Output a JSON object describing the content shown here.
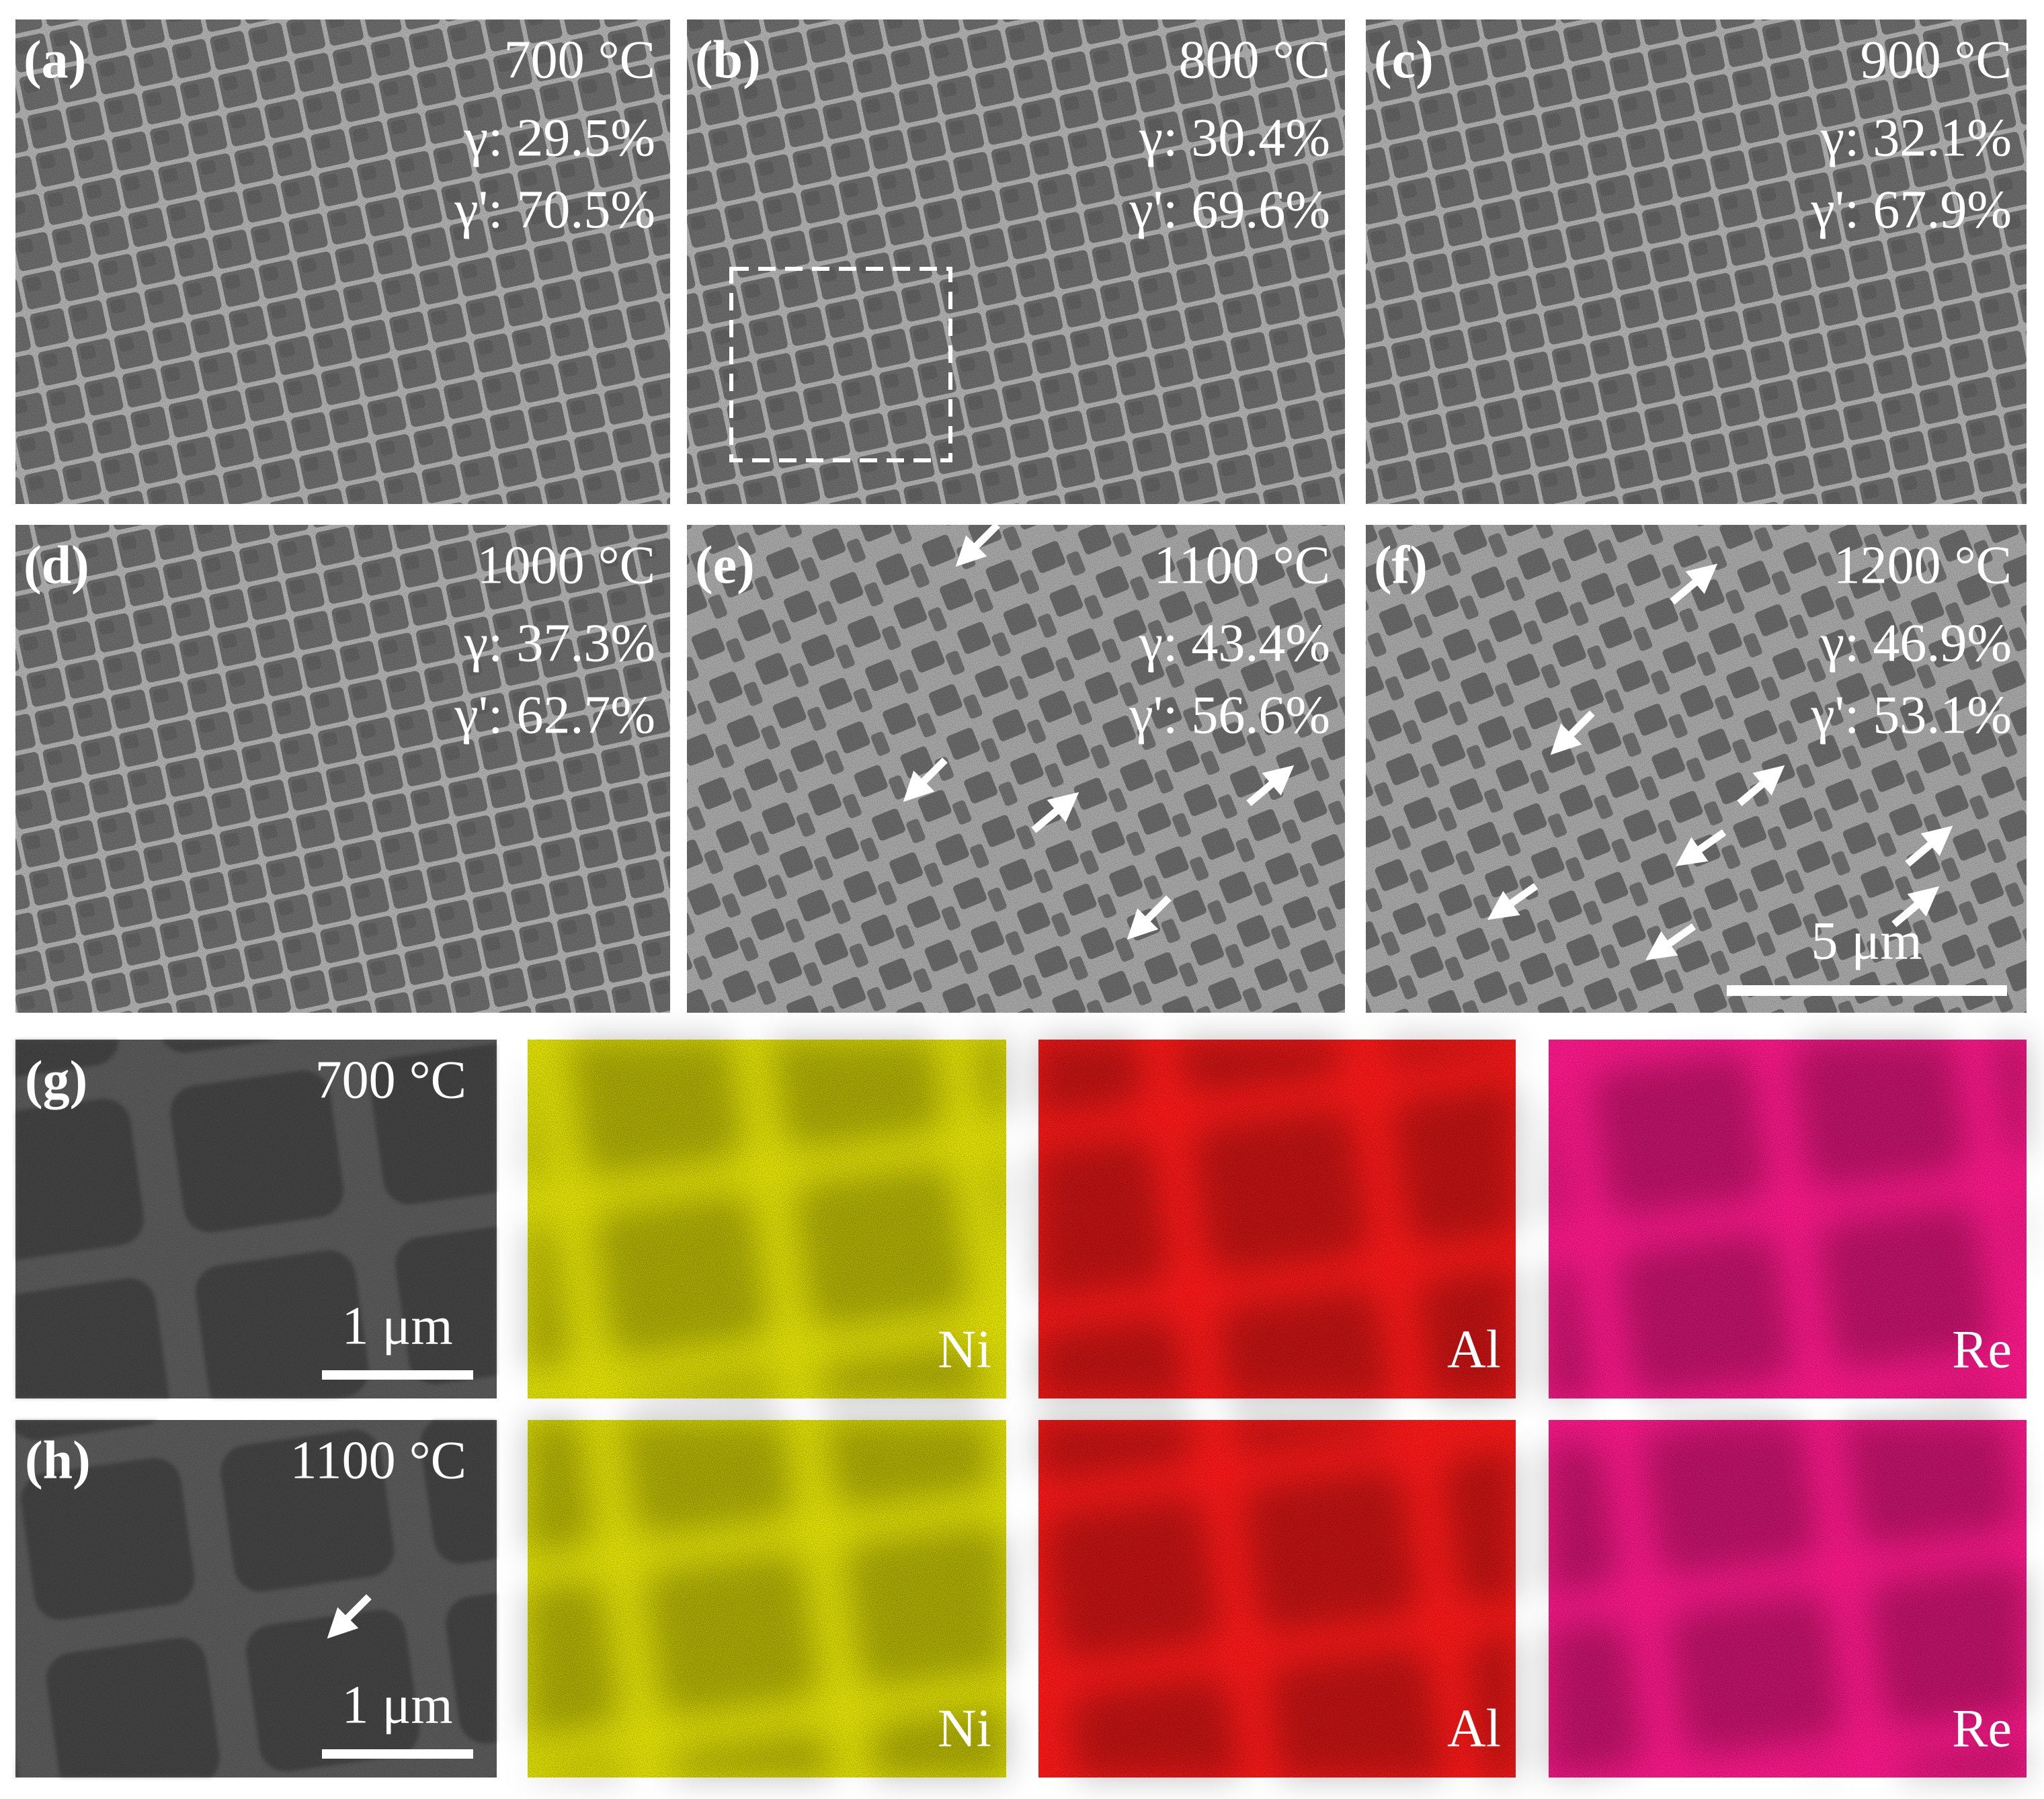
{
  "panels": [
    {
      "label": "(a)",
      "temperature": "700 °C",
      "gamma": "γ: 29.5%",
      "gamma_prime": "γ': 70.5%"
    },
    {
      "label": "(b)",
      "temperature": "800 °C",
      "gamma": "γ: 30.4%",
      "gamma_prime": "γ': 69.6%"
    },
    {
      "label": "(c)",
      "temperature": "900 °C",
      "gamma": "γ: 32.1%",
      "gamma_prime": "γ': 67.9%"
    },
    {
      "label": "(d)",
      "temperature": "1000 °C",
      "gamma": "γ: 37.3%",
      "gamma_prime": "γ': 62.7%"
    },
    {
      "label": "(e)",
      "temperature": "1100 °C",
      "gamma": "γ: 43.4%",
      "gamma_prime": "γ': 56.6%"
    },
    {
      "label": "(f)",
      "temperature": "1200 °C",
      "gamma": "γ: 46.9%",
      "gamma_prime": "γ': 53.1%"
    }
  ],
  "scale_bar": "5 μm",
  "maps": [
    {
      "label": "(g)",
      "temperature": "700 °C",
      "scale_bar": "1 μm",
      "elements": [
        "Ni",
        "Al",
        "Re"
      ]
    },
    {
      "label": "(h)",
      "temperature": "1100 °C",
      "scale_bar": "1 μm",
      "elements": [
        "Ni",
        "Al",
        "Re"
      ]
    }
  ]
}
